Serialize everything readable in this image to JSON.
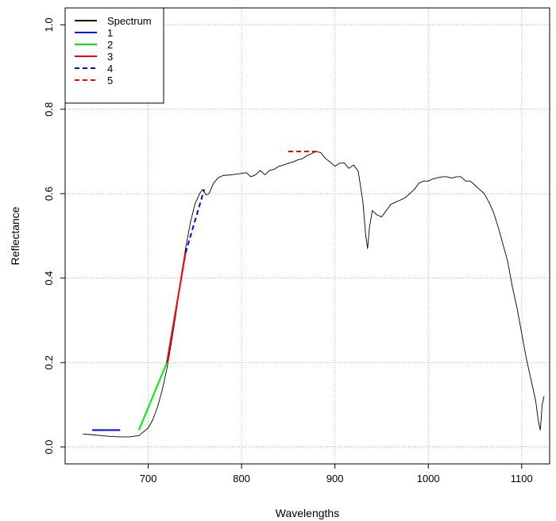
{
  "chart_data": {
    "type": "line",
    "xlabel": "Wavelengths",
    "ylabel": "Reflectance",
    "xlim": [
      611,
      1130
    ],
    "ylim": [
      -0.04,
      1.04
    ],
    "x_ticks": [
      700,
      800,
      900,
      1000,
      1100
    ],
    "y_ticks": [
      0.0,
      0.2,
      0.4,
      0.6,
      0.8,
      1.0
    ],
    "x_tick_labels": [
      "700",
      "800",
      "900",
      "1000",
      "1100"
    ],
    "y_tick_labels": [
      "0.0",
      "0.2",
      "0.4",
      "0.6",
      "0.8",
      "1.0"
    ],
    "grid": true,
    "legend": {
      "position": "top-left",
      "entries": [
        {
          "label": "Spectrum",
          "color": "#000000",
          "dash": "solid"
        },
        {
          "label": "1",
          "color": "#0000ff",
          "dash": "solid"
        },
        {
          "label": "2",
          "color": "#00ee00",
          "dash": "solid"
        },
        {
          "label": "3",
          "color": "#ff0000",
          "dash": "solid"
        },
        {
          "label": "4",
          "color": "#0000ff",
          "dash": "dashed"
        },
        {
          "label": "5",
          "color": "#ff0000",
          "dash": "dashed"
        }
      ]
    },
    "series": [
      {
        "name": "Spectrum",
        "color": "#000000",
        "points": [
          [
            630,
            0.031
          ],
          [
            640,
            0.029
          ],
          [
            650,
            0.027
          ],
          [
            660,
            0.025
          ],
          [
            670,
            0.024
          ],
          [
            680,
            0.024
          ],
          [
            690,
            0.027
          ],
          [
            700,
            0.045
          ],
          [
            705,
            0.065
          ],
          [
            710,
            0.095
          ],
          [
            715,
            0.135
          ],
          [
            720,
            0.185
          ],
          [
            725,
            0.25
          ],
          [
            730,
            0.32
          ],
          [
            735,
            0.4
          ],
          [
            740,
            0.47
          ],
          [
            745,
            0.53
          ],
          [
            750,
            0.575
          ],
          [
            755,
            0.6
          ],
          [
            758,
            0.61
          ],
          [
            762,
            0.597
          ],
          [
            765,
            0.6
          ],
          [
            770,
            0.625
          ],
          [
            775,
            0.638
          ],
          [
            780,
            0.643
          ],
          [
            790,
            0.645
          ],
          [
            800,
            0.648
          ],
          [
            805,
            0.65
          ],
          [
            810,
            0.64
          ],
          [
            815,
            0.645
          ],
          [
            820,
            0.655
          ],
          [
            825,
            0.645
          ],
          [
            830,
            0.655
          ],
          [
            835,
            0.658
          ],
          [
            840,
            0.665
          ],
          [
            845,
            0.668
          ],
          [
            850,
            0.672
          ],
          [
            855,
            0.675
          ],
          [
            860,
            0.68
          ],
          [
            865,
            0.683
          ],
          [
            870,
            0.69
          ],
          [
            875,
            0.695
          ],
          [
            880,
            0.7
          ],
          [
            885,
            0.697
          ],
          [
            890,
            0.683
          ],
          [
            895,
            0.675
          ],
          [
            900,
            0.665
          ],
          [
            905,
            0.672
          ],
          [
            910,
            0.673
          ],
          [
            915,
            0.66
          ],
          [
            920,
            0.668
          ],
          [
            925,
            0.653
          ],
          [
            930,
            0.58
          ],
          [
            933,
            0.5
          ],
          [
            935,
            0.47
          ],
          [
            937,
            0.52
          ],
          [
            940,
            0.56
          ],
          [
            945,
            0.55
          ],
          [
            950,
            0.545
          ],
          [
            955,
            0.56
          ],
          [
            960,
            0.575
          ],
          [
            965,
            0.58
          ],
          [
            970,
            0.585
          ],
          [
            975,
            0.59
          ],
          [
            980,
            0.6
          ],
          [
            985,
            0.61
          ],
          [
            990,
            0.625
          ],
          [
            995,
            0.63
          ],
          [
            1000,
            0.63
          ],
          [
            1005,
            0.635
          ],
          [
            1010,
            0.638
          ],
          [
            1015,
            0.64
          ],
          [
            1020,
            0.64
          ],
          [
            1025,
            0.637
          ],
          [
            1030,
            0.64
          ],
          [
            1035,
            0.64
          ],
          [
            1040,
            0.63
          ],
          [
            1045,
            0.63
          ],
          [
            1050,
            0.62
          ],
          [
            1055,
            0.61
          ],
          [
            1060,
            0.6
          ],
          [
            1065,
            0.58
          ],
          [
            1070,
            0.555
          ],
          [
            1075,
            0.52
          ],
          [
            1080,
            0.48
          ],
          [
            1085,
            0.44
          ],
          [
            1090,
            0.38
          ],
          [
            1095,
            0.33
          ],
          [
            1100,
            0.27
          ],
          [
            1105,
            0.21
          ],
          [
            1110,
            0.16
          ],
          [
            1115,
            0.11
          ],
          [
            1118,
            0.06
          ],
          [
            1120,
            0.04
          ],
          [
            1122,
            0.1
          ],
          [
            1124,
            0.12
          ]
        ]
      },
      {
        "name": "1",
        "color": "#0000ff",
        "dash": "solid",
        "points": [
          [
            640,
            0.04
          ],
          [
            670,
            0.04
          ]
        ]
      },
      {
        "name": "2",
        "color": "#00ee00",
        "dash": "solid",
        "points": [
          [
            690,
            0.04
          ],
          [
            720,
            0.2
          ]
        ]
      },
      {
        "name": "3",
        "color": "#ff0000",
        "dash": "solid",
        "points": [
          [
            720,
            0.2
          ],
          [
            740,
            0.46
          ]
        ]
      },
      {
        "name": "4",
        "color": "#0000ff",
        "dash": "dashed",
        "points": [
          [
            740,
            0.46
          ],
          [
            760,
            0.61
          ]
        ]
      },
      {
        "name": "5",
        "color": "#ff0000",
        "dash": "dashed",
        "points": [
          [
            850,
            0.7
          ],
          [
            880,
            0.7
          ]
        ]
      }
    ]
  }
}
